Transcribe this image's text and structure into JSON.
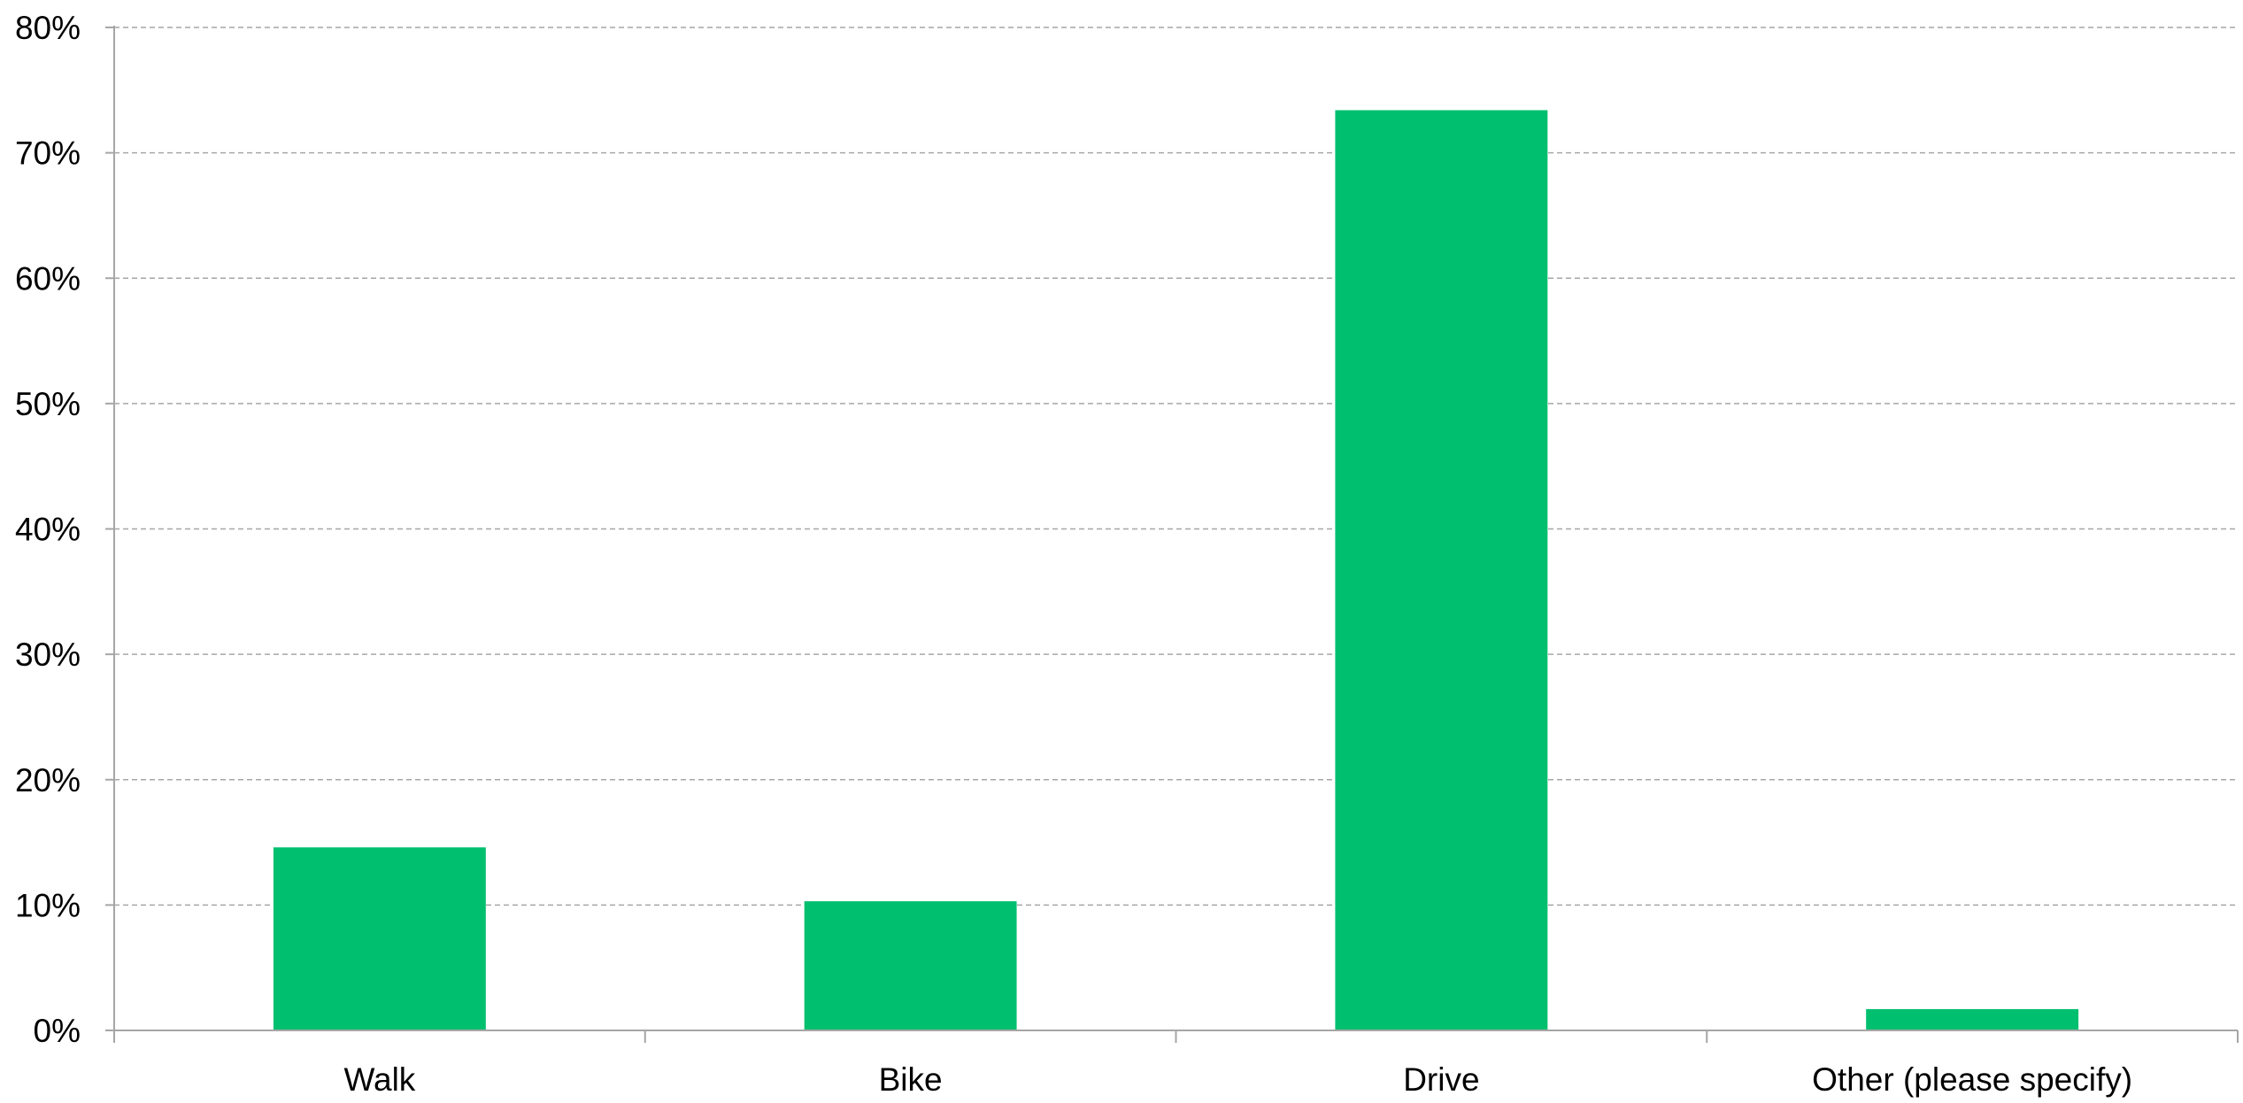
{
  "chart_data": {
    "type": "bar",
    "title": "",
    "xlabel": "",
    "ylabel": "",
    "categories": [
      "Walk",
      "Bike",
      "Drive",
      "Other (please specify)"
    ],
    "values": [
      14.6,
      10.3,
      73.4,
      1.7
    ],
    "ylim": [
      0,
      80
    ],
    "y_ticks": [
      0,
      10,
      20,
      30,
      40,
      50,
      60,
      70,
      80
    ],
    "y_tick_labels": [
      "0%",
      "10%",
      "20%",
      "30%",
      "40%",
      "50%",
      "60%",
      "70%",
      "80%"
    ],
    "grid": true,
    "legend": "none",
    "colors": {
      "bar": "#00bf6f",
      "grid": "#a6a6a6",
      "axis": "#a6a6a6",
      "text": "#000000"
    }
  }
}
